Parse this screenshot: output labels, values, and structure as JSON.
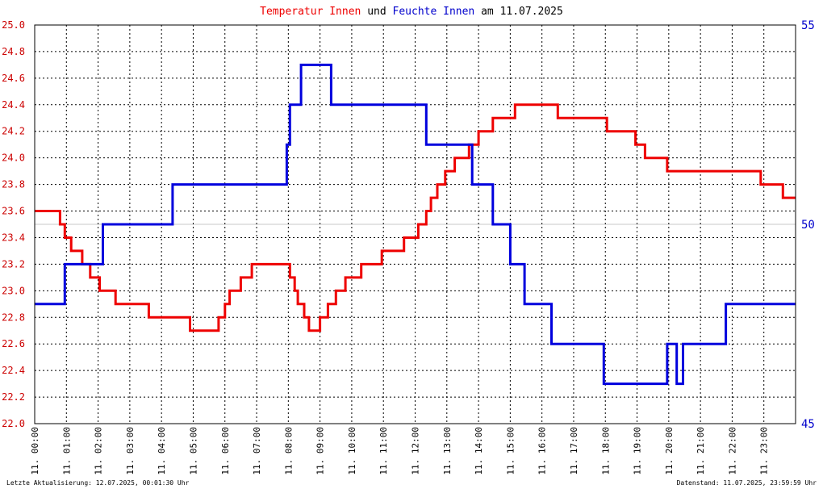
{
  "title": {
    "parts": [
      {
        "text": "Temperatur Innen",
        "color": "#ee0000"
      },
      {
        "text": " und ",
        "color": "#000000"
      },
      {
        "text": "Feuchte Innen",
        "color": "#0000cc"
      },
      {
        "text": " am 11.07.2025",
        "color": "#000000"
      }
    ]
  },
  "footer": {
    "left": "Letzte Aktualisierung: 12.07.2025, 00:01:30 Uhr",
    "right": "Datenstand: 11.07.2025, 23:59:59 Uhr"
  },
  "colors": {
    "temperature": "#ee0000",
    "humidity": "#0000dd",
    "grid": "#000000",
    "left_axis_text": "#cc0000",
    "right_axis_text": "#0000cc"
  },
  "chart_data": {
    "type": "line",
    "title": "Temperatur Innen und Feuchte Innen am 11.07.2025",
    "xlim": [
      0,
      24
    ],
    "x_ticks": [
      "11. 00:00",
      "11. 01:00",
      "11. 02:00",
      "11. 03:00",
      "11. 04:00",
      "11. 05:00",
      "11. 06:00",
      "11. 07:00",
      "11. 08:00",
      "11. 09:00",
      "11. 10:00",
      "11. 11:00",
      "11. 12:00",
      "11. 13:00",
      "11. 14:00",
      "11. 15:00",
      "11. 16:00",
      "11. 17:00",
      "11. 18:00",
      "11. 19:00",
      "11. 20:00",
      "11. 21:00",
      "11. 22:00",
      "11. 23:00"
    ],
    "y_left": {
      "range": [
        22.0,
        25.0
      ],
      "ticks": [
        "22.0",
        "22.2",
        "22.4",
        "22.6",
        "22.8",
        "23.0",
        "23.2",
        "23.4",
        "23.6",
        "23.8",
        "24.0",
        "24.2",
        "24.4",
        "24.6",
        "24.8",
        "25.0"
      ]
    },
    "y_right": {
      "range": [
        45,
        55
      ],
      "ticks": [
        "45",
        "50",
        "55"
      ]
    },
    "grid": true,
    "series": [
      {
        "name": "Temperatur Innen",
        "axis": "left",
        "step": true,
        "points": [
          [
            0.0,
            23.6
          ],
          [
            0.8,
            23.5
          ],
          [
            0.95,
            23.4
          ],
          [
            1.15,
            23.3
          ],
          [
            1.5,
            23.2
          ],
          [
            1.75,
            23.1
          ],
          [
            2.05,
            23.0
          ],
          [
            2.55,
            22.9
          ],
          [
            3.6,
            22.8
          ],
          [
            4.8,
            22.8
          ],
          [
            4.9,
            22.7
          ],
          [
            5.8,
            22.8
          ],
          [
            6.0,
            22.9
          ],
          [
            6.15,
            23.0
          ],
          [
            6.5,
            23.1
          ],
          [
            6.85,
            23.2
          ],
          [
            7.25,
            23.2
          ],
          [
            7.6,
            23.2
          ],
          [
            7.9,
            23.2
          ],
          [
            8.05,
            23.1
          ],
          [
            8.2,
            23.0
          ],
          [
            8.3,
            22.9
          ],
          [
            8.5,
            22.8
          ],
          [
            8.65,
            22.7
          ],
          [
            8.8,
            22.7
          ],
          [
            9.0,
            22.8
          ],
          [
            9.25,
            22.9
          ],
          [
            9.5,
            23.0
          ],
          [
            9.8,
            23.1
          ],
          [
            10.3,
            23.2
          ],
          [
            10.95,
            23.3
          ],
          [
            11.65,
            23.4
          ],
          [
            12.1,
            23.5
          ],
          [
            12.35,
            23.6
          ],
          [
            12.5,
            23.7
          ],
          [
            12.7,
            23.8
          ],
          [
            12.95,
            23.9
          ],
          [
            13.25,
            24.0
          ],
          [
            13.7,
            24.1
          ],
          [
            14.0,
            24.2
          ],
          [
            14.45,
            24.3
          ],
          [
            14.9,
            24.3
          ],
          [
            15.15,
            24.4
          ],
          [
            16.5,
            24.3
          ],
          [
            17.85,
            24.3
          ],
          [
            18.05,
            24.2
          ],
          [
            18.95,
            24.1
          ],
          [
            19.25,
            24.0
          ],
          [
            19.95,
            23.9
          ],
          [
            20.4,
            23.9
          ],
          [
            22.9,
            23.8
          ],
          [
            23.6,
            23.7
          ],
          [
            24.0,
            23.7
          ]
        ]
      },
      {
        "name": "Feuchte Innen",
        "axis": "right",
        "step": true,
        "points": [
          [
            0.0,
            48
          ],
          [
            0.95,
            49
          ],
          [
            2.15,
            50
          ],
          [
            4.35,
            51
          ],
          [
            7.95,
            52
          ],
          [
            8.05,
            53
          ],
          [
            8.4,
            54
          ],
          [
            9.35,
            53
          ],
          [
            12.35,
            52
          ],
          [
            13.8,
            51
          ],
          [
            14.45,
            50
          ],
          [
            15.0,
            49
          ],
          [
            15.45,
            48
          ],
          [
            16.3,
            47
          ],
          [
            17.95,
            46
          ],
          [
            19.95,
            47
          ],
          [
            20.25,
            46
          ],
          [
            20.45,
            47
          ],
          [
            21.8,
            48
          ],
          [
            24.0,
            48
          ]
        ]
      }
    ]
  }
}
